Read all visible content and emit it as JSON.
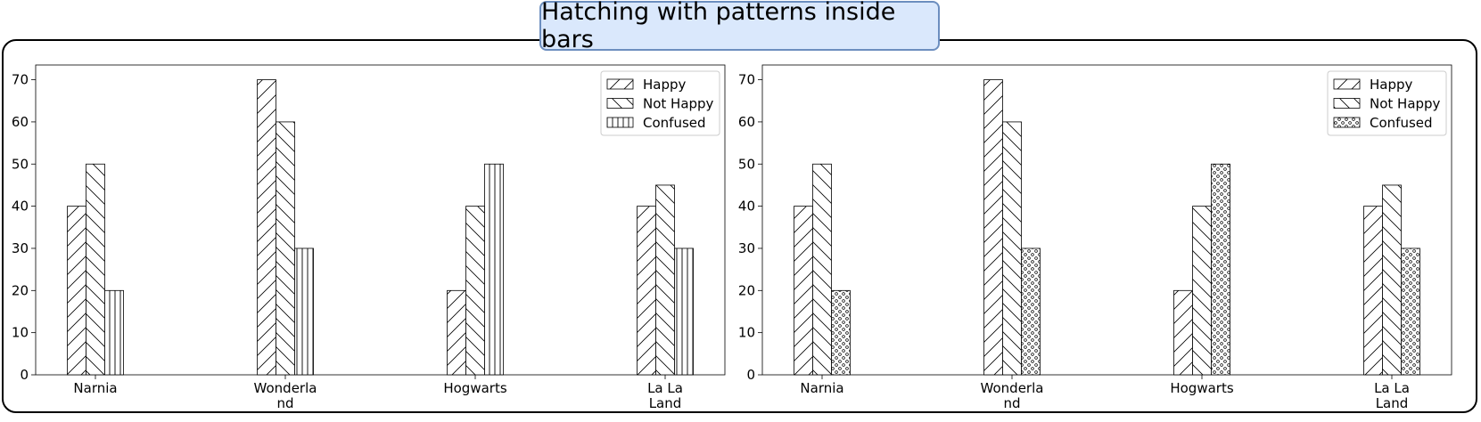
{
  "title": "Hatching with patterns inside bars",
  "chart_data": [
    {
      "type": "bar",
      "categories": [
        "Narnia",
        "Wonderla\nnd",
        "Hogwarts",
        "La La\nLand"
      ],
      "series": [
        {
          "name": "Happy",
          "values": [
            40,
            70,
            20,
            40
          ],
          "pattern": "diag-forward"
        },
        {
          "name": "Not Happy",
          "values": [
            50,
            60,
            40,
            45
          ],
          "pattern": "diag-back"
        },
        {
          "name": "Confused",
          "values": [
            20,
            30,
            50,
            30
          ],
          "pattern": "vertical"
        }
      ],
      "yticks": [
        0,
        10,
        20,
        30,
        40,
        50,
        60,
        70
      ],
      "ylim": [
        0,
        73.5
      ],
      "legend_position": "top-right",
      "grid": false
    },
    {
      "type": "bar",
      "categories": [
        "Narnia",
        "Wonderla\nnd",
        "Hogwarts",
        "La La\nLand"
      ],
      "series": [
        {
          "name": "Happy",
          "values": [
            40,
            70,
            20,
            40
          ],
          "pattern": "diag-forward"
        },
        {
          "name": "Not Happy",
          "values": [
            50,
            60,
            40,
            45
          ],
          "pattern": "diag-back"
        },
        {
          "name": "Confused",
          "values": [
            20,
            30,
            50,
            30
          ],
          "pattern": "dots"
        }
      ],
      "yticks": [
        0,
        10,
        20,
        30,
        40,
        50,
        60,
        70
      ],
      "ylim": [
        0,
        73.5
      ],
      "legend_position": "top-right",
      "grid": false
    }
  ]
}
